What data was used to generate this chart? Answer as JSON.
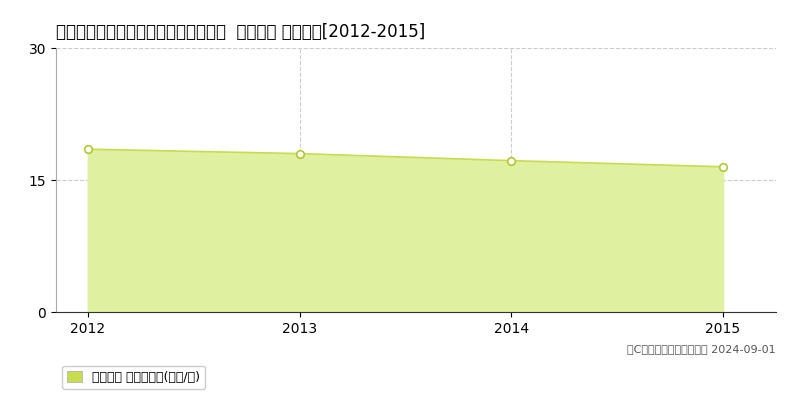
{
  "title": "和歌山県新宮市仲之町２丁目２番４外  地価公示 地価推移[2012-2015]",
  "years": [
    2012,
    2013,
    2014,
    2015
  ],
  "values": [
    18.5,
    18.0,
    17.2,
    16.5
  ],
  "ylim": [
    0,
    30
  ],
  "yticks": [
    0,
    15,
    30
  ],
  "line_color": "#c8dc50",
  "fill_color": "#dff0a0",
  "marker_facecolor": "#ffffff",
  "marker_edgecolor": "#b0c830",
  "grid_color": "#cccccc",
  "background_color": "#ffffff",
  "title_fontsize": 12,
  "legend_label": "地価公示 平均坪単価(万円/坪)",
  "legend_square_color": "#c8dc50",
  "copyright_text": "（C）土地価格ドットコム 2024-09-01",
  "axis_label_fontsize": 10,
  "tick_fontsize": 10,
  "legend_fontsize": 9,
  "copyright_fontsize": 8
}
